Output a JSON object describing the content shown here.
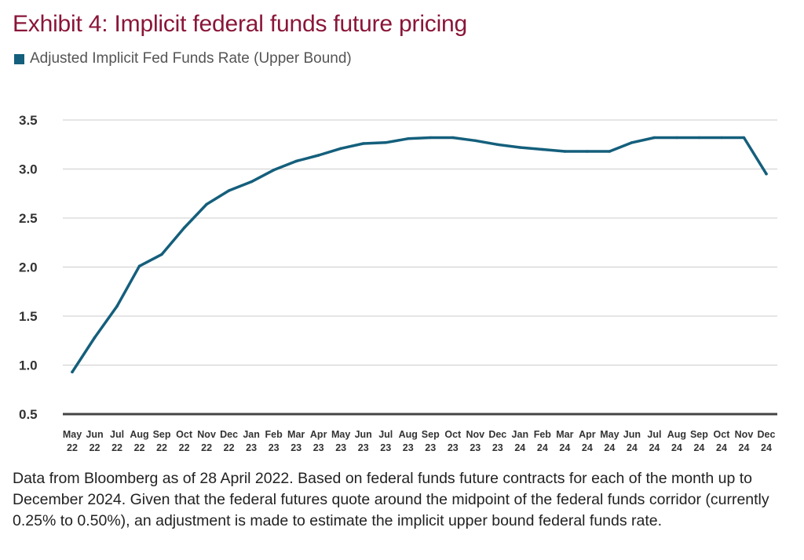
{
  "title": "Exhibit 4: Implicit federal funds future pricing",
  "footnote": "Data from Bloomberg as of 28 April 2022. Based on federal funds future contracts for each of the month up to December 2024. Given that the federal futures quote around the midpoint of the federal funds corridor (currently 0.25% to 0.50%), an adjustment is made to estimate the implicit upper bound federal funds rate.",
  "colors": {
    "title": "#8a1538",
    "series": "#145f7c",
    "grid": "#cccccc",
    "axis": "#444444"
  },
  "chart_data": {
    "type": "line",
    "categories": [
      [
        "May",
        "22"
      ],
      [
        "Jun",
        "22"
      ],
      [
        "Jul",
        "22"
      ],
      [
        "Aug",
        "22"
      ],
      [
        "Sep",
        "22"
      ],
      [
        "Oct",
        "22"
      ],
      [
        "Nov",
        "22"
      ],
      [
        "Dec",
        "22"
      ],
      [
        "Jan",
        "23"
      ],
      [
        "Feb",
        "23"
      ],
      [
        "Mar",
        "23"
      ],
      [
        "Apr",
        "23"
      ],
      [
        "May",
        "23"
      ],
      [
        "Jun",
        "23"
      ],
      [
        "Jul",
        "23"
      ],
      [
        "Aug",
        "23"
      ],
      [
        "Sep",
        "23"
      ],
      [
        "Oct",
        "23"
      ],
      [
        "Nov",
        "23"
      ],
      [
        "Dec",
        "23"
      ],
      [
        "Jan",
        "24"
      ],
      [
        "Feb",
        "24"
      ],
      [
        "Mar",
        "24"
      ],
      [
        "Apr",
        "24"
      ],
      [
        "May",
        "24"
      ],
      [
        "Jun",
        "24"
      ],
      [
        "Jul",
        "24"
      ],
      [
        "Aug",
        "24"
      ],
      [
        "Sep",
        "24"
      ],
      [
        "Oct",
        "24"
      ],
      [
        "Nov",
        "24"
      ],
      [
        "Dec",
        "24"
      ]
    ],
    "series": [
      {
        "name": "Adjusted Implicit Fed Funds Rate (Upper Bound)",
        "values": [
          0.93,
          1.28,
          1.6,
          2.01,
          2.13,
          2.4,
          2.64,
          2.78,
          2.87,
          2.99,
          3.08,
          3.14,
          3.21,
          3.26,
          3.27,
          3.31,
          3.32,
          3.32,
          3.29,
          3.25,
          3.22,
          3.2,
          3.18,
          3.18,
          3.18,
          3.27,
          3.32,
          3.32,
          3.32,
          3.32,
          3.32,
          2.95
        ]
      }
    ],
    "yticks": [
      "3.5",
      "3.0",
      "2.5",
      "2.0",
      "1.5",
      "1.0",
      "0.5"
    ],
    "ylim": [
      0.5,
      3.5
    ],
    "grid": true,
    "legend": "top-left"
  }
}
